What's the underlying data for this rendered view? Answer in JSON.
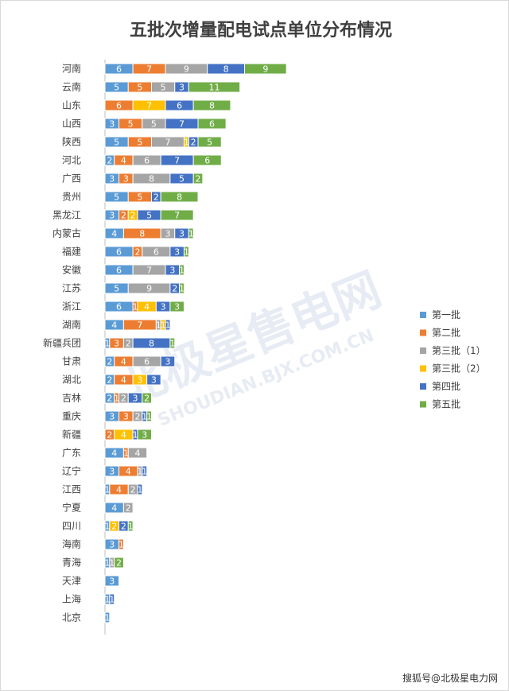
{
  "chart_data": {
    "type": "bar",
    "orientation": "horizontal",
    "stacked": true,
    "title": "五批次增量配电试点单位分布情况",
    "xlabel": "",
    "ylabel": "",
    "xlim": [
      0,
      65
    ],
    "grid": false,
    "legend_position": "right",
    "categories": [
      "河南",
      "云南",
      "山东",
      "山西",
      "陕西",
      "河北",
      "广西",
      "贵州",
      "黑龙江",
      "内蒙古",
      "福建",
      "安徽",
      "江苏",
      "浙江",
      "湖南",
      "新疆兵团",
      "甘肃",
      "湖北",
      "吉林",
      "重庆",
      "新疆",
      "广东",
      "辽宁",
      "江西",
      "宁夏",
      "四川",
      "海南",
      "青海",
      "天津",
      "上海",
      "北京"
    ],
    "series": [
      {
        "name": "第一批",
        "color": "#5b9bd5",
        "values": [
          6,
          5,
          0,
          3,
          5,
          2,
          3,
          5,
          3,
          4,
          6,
          6,
          5,
          6,
          4,
          1,
          2,
          2,
          2,
          3,
          0,
          4,
          3,
          1,
          4,
          1,
          3,
          1,
          3,
          1,
          1
        ]
      },
      {
        "name": "第二批",
        "color": "#ed7d31",
        "values": [
          7,
          5,
          6,
          5,
          5,
          4,
          3,
          5,
          2,
          8,
          2,
          0,
          0,
          1,
          7,
          3,
          4,
          4,
          1,
          3,
          2,
          1,
          4,
          4,
          0,
          0,
          1,
          0,
          0,
          0,
          0
        ]
      },
      {
        "name": "第三批（1）",
        "color": "#a5a5a5",
        "values": [
          9,
          5,
          0,
          5,
          7,
          6,
          8,
          0,
          0,
          3,
          6,
          7,
          9,
          0,
          1,
          2,
          6,
          0,
          2,
          2,
          0,
          4,
          1,
          2,
          2,
          0,
          0,
          1,
          0,
          0,
          0
        ]
      },
      {
        "name": "第三批（2）",
        "color": "#ffc000",
        "values": [
          0,
          0,
          7,
          0,
          1,
          0,
          0,
          0,
          2,
          0,
          0,
          0,
          0,
          4,
          1,
          0,
          0,
          3,
          0,
          0,
          4,
          0,
          0,
          0,
          0,
          2,
          0,
          0,
          0,
          0,
          0
        ]
      },
      {
        "name": "第四批",
        "color": "#4472c4",
        "values": [
          8,
          3,
          6,
          7,
          2,
          7,
          5,
          2,
          5,
          3,
          3,
          3,
          2,
          3,
          1,
          8,
          3,
          3,
          3,
          1,
          1,
          0,
          1,
          1,
          0,
          2,
          0,
          0,
          0,
          1,
          0
        ]
      },
      {
        "name": "第五批",
        "color": "#70ad47",
        "values": [
          9,
          11,
          8,
          6,
          5,
          6,
          2,
          8,
          7,
          1,
          1,
          1,
          1,
          3,
          0,
          1,
          0,
          0,
          2,
          1,
          3,
          0,
          0,
          0,
          0,
          1,
          0,
          2,
          0,
          0,
          0
        ]
      }
    ]
  },
  "watermark": {
    "brand": "北极星售电网",
    "domain": "SHOUDIAN.BJX.COM.CN"
  },
  "credit": "搜狐号@北极星电力网"
}
